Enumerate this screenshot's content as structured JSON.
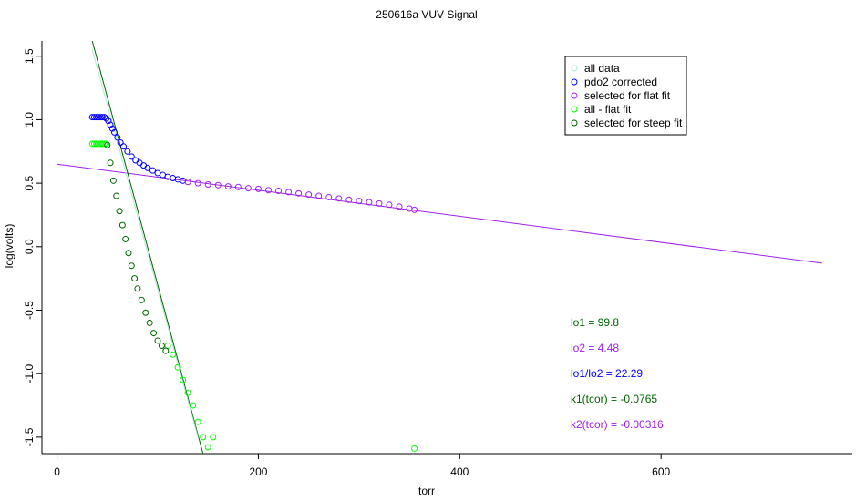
{
  "chart_data": {
    "type": "scatter",
    "title": "250616a   VUV Signal",
    "xlabel": "torr",
    "ylabel": "log(volts)",
    "xlim": [
      -15,
      790
    ],
    "ylim": [
      -1.63,
      1.62
    ],
    "x_ticks": [
      0,
      200,
      400,
      600
    ],
    "x_tick_labels": [
      "0",
      "200",
      "400",
      "600"
    ],
    "y_ticks": [
      -1.5,
      -1.0,
      -0.5,
      0.0,
      0.5,
      1.0,
      1.5
    ],
    "y_tick_labels": [
      "-1.5",
      "-1.0",
      "-0.5",
      "0.0",
      "0.5",
      "1.0",
      "1.5"
    ],
    "grid": false,
    "legend_position": "top-right",
    "legend": [
      {
        "label": "all data",
        "color": "#b0e8d8"
      },
      {
        "label": "pdo2 corrected",
        "color": "#0000ff"
      },
      {
        "label": "selected for flat fit",
        "color": "#a020f0"
      },
      {
        "label": "all - flat fit",
        "color": "#00ff00"
      },
      {
        "label": "selected for steep fit",
        "color": "#006400"
      }
    ],
    "annotations": [
      {
        "label": "lo1 = ",
        "value": "99.8",
        "color": "#006400"
      },
      {
        "label": "lo2 = ",
        "value": "4.48",
        "color": "#a020f0"
      },
      {
        "label": "lo1/lo2 = ",
        "value": "22.29",
        "color": "#0000ff"
      },
      {
        "label": "k1(tcor) = ",
        "value": "-0.0765",
        "color": "#006400"
      },
      {
        "label": "k2(tcor) = ",
        "value": "-0.00316",
        "color": "#a020f0"
      }
    ],
    "series": [
      {
        "name": "pdo2 corrected",
        "color": "#0000ff",
        "x": [
          35,
          37,
          39,
          41,
          43,
          45,
          47,
          49,
          51,
          53,
          55,
          57,
          60,
          63,
          66,
          70,
          74,
          78,
          82,
          86,
          90,
          95,
          100,
          105,
          110,
          115,
          120,
          125
        ],
        "y": [
          1.02,
          1.02,
          1.02,
          1.02,
          1.02,
          1.02,
          1.02,
          1.01,
          0.99,
          0.96,
          0.93,
          0.9,
          0.86,
          0.82,
          0.79,
          0.75,
          0.71,
          0.68,
          0.66,
          0.64,
          0.62,
          0.6,
          0.58,
          0.565,
          0.55,
          0.54,
          0.53,
          0.52
        ]
      },
      {
        "name": "selected for flat fit",
        "color": "#a020f0",
        "x": [
          130,
          140,
          150,
          160,
          170,
          180,
          190,
          200,
          210,
          220,
          230,
          240,
          250,
          260,
          270,
          280,
          290,
          300,
          310,
          320,
          330,
          340,
          350,
          355
        ],
        "y": [
          0.51,
          0.5,
          0.49,
          0.485,
          0.475,
          0.47,
          0.46,
          0.455,
          0.445,
          0.44,
          0.43,
          0.42,
          0.41,
          0.4,
          0.39,
          0.38,
          0.37,
          0.36,
          0.35,
          0.34,
          0.33,
          0.315,
          0.3,
          0.29
        ]
      },
      {
        "name": "all - flat fit",
        "color": "#00ff00",
        "x": [
          35,
          37,
          39,
          41,
          43,
          45,
          47,
          49,
          110,
          115,
          120,
          125,
          130,
          135,
          140,
          145,
          150,
          155,
          355
        ],
        "y": [
          0.81,
          0.81,
          0.81,
          0.81,
          0.81,
          0.81,
          0.81,
          0.81,
          -0.78,
          -0.85,
          -0.95,
          -1.05,
          -1.15,
          -1.25,
          -1.38,
          -1.5,
          -1.58,
          -1.5,
          -1.59
        ]
      },
      {
        "name": "selected for steep fit",
        "color": "#006400",
        "x": [
          50,
          53,
          56,
          59,
          62,
          65,
          68,
          71,
          74,
          77,
          80,
          84,
          88,
          92,
          96,
          100,
          104,
          108
        ],
        "y": [
          0.8,
          0.66,
          0.52,
          0.4,
          0.28,
          0.17,
          0.06,
          -0.05,
          -0.15,
          -0.25,
          -0.33,
          -0.42,
          -0.52,
          -0.6,
          -0.68,
          -0.74,
          -0.78,
          -0.82
        ]
      }
    ],
    "fit_lines": [
      {
        "name": "flat fit",
        "color": "#a020f0",
        "x": [
          0,
          760
        ],
        "y": [
          0.65,
          -0.13
        ]
      },
      {
        "name": "steep fit",
        "color": "#006400",
        "x": [
          35,
          145
        ],
        "y": [
          1.62,
          -1.63
        ]
      },
      {
        "name": "all data fit",
        "color": "#b0e8d8",
        "x": [
          35,
          140
        ],
        "y": [
          1.55,
          -1.5
        ]
      }
    ]
  }
}
